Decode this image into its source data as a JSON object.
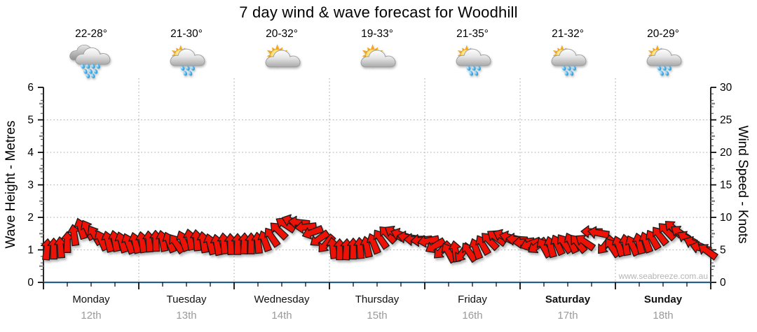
{
  "title": "7 day wind & wave forecast for Woodhill",
  "watermark": "www.seabreeze.com.au",
  "days": [
    {
      "name": "Monday",
      "date": "12th",
      "temp": "22-28°",
      "icon": "rain",
      "bold": false
    },
    {
      "name": "Tuesday",
      "date": "13th",
      "temp": "21-30°",
      "icon": "sun-cloud-rain",
      "bold": false
    },
    {
      "name": "Wednesday",
      "date": "14th",
      "temp": "20-32°",
      "icon": "sun-cloud",
      "bold": false
    },
    {
      "name": "Thursday",
      "date": "15th",
      "temp": "19-33°",
      "icon": "sun-cloud",
      "bold": false
    },
    {
      "name": "Friday",
      "date": "16th",
      "temp": "21-35°",
      "icon": "sun-cloud-rain",
      "bold": false
    },
    {
      "name": "Saturday",
      "date": "17th",
      "temp": "21-32°",
      "icon": "sun-cloud-rain",
      "bold": true
    },
    {
      "name": "Sunday",
      "date": "18th",
      "temp": "20-29°",
      "icon": "sun-cloud-rain",
      "bold": true
    }
  ],
  "left_axis": {
    "label": "Wave Height - Metres",
    "ticks": [
      0,
      1,
      2,
      3,
      4,
      5,
      6
    ],
    "range": [
      0,
      6
    ]
  },
  "right_axis": {
    "label": "Wind Speed - Knots",
    "ticks": [
      0,
      5,
      10,
      15,
      20,
      25,
      30
    ],
    "range": [
      0,
      30
    ]
  },
  "colors": {
    "arrow_red": "#ee1105",
    "arrow_outline": "#1b1b1b",
    "baseline_blue": "#26618a",
    "axis_black": "#000000",
    "grid_grey": "#ababab",
    "date_grey": "#9a9a9a",
    "watermark_grey": "#b5b5b5"
  },
  "chart_data": {
    "type": "scatter",
    "subtype": "wind-direction-arrow-timeseries",
    "title": "7 day wind & wave forecast for Woodhill",
    "xlabel": "",
    "ylabel_left": "Wave Height - Metres",
    "ylabel_right": "Wind Speed - Knots",
    "ylim_left_metres": [
      0,
      6
    ],
    "ylim_right_knots": [
      0,
      30
    ],
    "grid": "dotted horizontal at 1-5 m (5-25 kn) and vertical at each day boundary",
    "legend": "none",
    "categories": [
      "Monday 12th",
      "Tuesday 13th",
      "Wednesday 14th",
      "Thursday 15th",
      "Friday 16th",
      "Saturday 17th",
      "Sunday 18th"
    ],
    "points_per_day": 14,
    "x_spacing_hours": 1.714,
    "series": [
      {
        "name": "Wind speed (knots) - arrow centre height, one sub-array per day",
        "knots": [
          [
            5.1,
            5.2,
            5.4,
            6.2,
            7.3,
            8.3,
            8.1,
            7.3,
            6.5,
            6.3,
            6.4,
            6.2,
            6.0,
            6.1
          ],
          [
            6.2,
            6.3,
            6.4,
            6.4,
            6.2,
            6.0,
            6.4,
            6.6,
            6.5,
            6.2,
            5.9,
            5.8,
            6.0,
            5.9
          ],
          [
            5.9,
            6.0,
            6.0,
            6.1,
            6.4,
            7.0,
            8.0,
            8.9,
            9.4,
            9.2,
            8.5,
            7.7,
            6.7,
            5.9
          ],
          [
            5.3,
            5.1,
            5.1,
            5.2,
            5.3,
            5.5,
            6.0,
            6.7,
            7.4,
            7.6,
            7.3,
            6.9,
            6.6,
            6.5
          ],
          [
            6.4,
            5.6,
            4.9,
            4.6,
            4.8,
            4.5,
            4.7,
            5.2,
            5.8,
            6.4,
            6.9,
            7.1,
            6.9,
            6.6
          ],
          [
            6.2,
            5.9,
            5.6,
            5.4,
            5.5,
            5.8,
            6.0,
            6.1,
            6.0,
            6.2,
            7.8,
            7.6,
            5.7,
            5.4
          ],
          [
            5.6,
            5.8,
            5.7,
            6.0,
            6.2,
            6.6,
            7.2,
            7.9,
            8.3,
            7.6,
            6.8,
            6.0,
            5.3,
            4.8
          ]
        ],
        "dir_deg_clockwise_from_up": [
          [
            5,
            0,
            -5,
            0,
            -8,
            -18,
            -28,
            -32,
            -25,
            -15,
            -12,
            -18,
            -22,
            -15
          ],
          [
            -10,
            -5,
            -2,
            -12,
            -22,
            -35,
            -22,
            -12,
            -6,
            -10,
            -16,
            -12,
            -6,
            -3
          ],
          [
            0,
            2,
            0,
            -6,
            -20,
            -34,
            -46,
            -58,
            -70,
            -82,
            -95,
            -110,
            -125,
            -138
          ],
          [
            -8,
            0,
            3,
            0,
            -5,
            -12,
            -22,
            -34,
            -45,
            -58,
            -70,
            -80,
            -90,
            -95
          ],
          [
            -100,
            -120,
            -135,
            -30,
            -10,
            -145,
            -35,
            -20,
            -30,
            -45,
            -55,
            -65,
            -75,
            -85
          ],
          [
            -95,
            -110,
            -125,
            -30,
            -15,
            -25,
            -35,
            -25,
            -40,
            -55,
            -88,
            -80,
            -140,
            -35
          ],
          [
            -20,
            -10,
            -25,
            -15,
            -20,
            -30,
            -38,
            -45,
            -48,
            -55,
            -60,
            -65,
            -75,
            -55
          ]
        ]
      },
      {
        "name": "Wave Height - Metres",
        "approx_constant_value_m": 0.05,
        "note": "flat blue line along the baseline for all 7 days"
      }
    ]
  }
}
